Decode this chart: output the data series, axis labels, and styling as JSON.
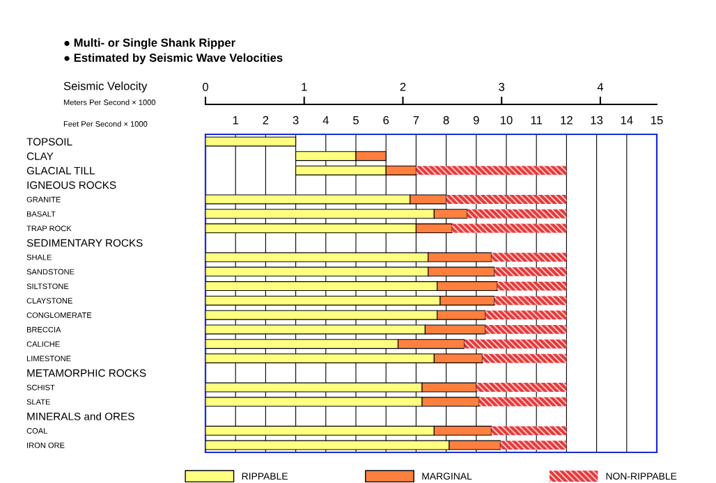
{
  "chart_data": {
    "type": "bar",
    "orientation": "horizontal",
    "title": "● Multi- or Single Shank Ripper\n● Estimated by Seismic Wave Velocities",
    "xlabel": "Feet Per Second × 1000",
    "x2label": "Meters Per Second × 1000",
    "annotations": [
      "Seismic Velocity"
    ],
    "categories": [
      "TOPSOIL",
      "CLAY",
      "GLACIAL TILL",
      "IGNEOUS ROCKS",
      "GRANITE",
      "BASALT",
      "TRAP ROCK",
      "SEDIMENTARY ROCKS",
      "SHALE",
      "SANDSTONE",
      "SILTSTONE",
      "CLAYSTONE",
      "CONGLOMERATE",
      "BRECCIA",
      "CALICHE",
      "LIMESTONE",
      "METAMORPHIC ROCKS",
      "SCHIST",
      "SLATE",
      "MINERALS and ORES",
      "COAL",
      "IRON ORE"
    ],
    "series": [
      {
        "name": "RIPPABLE",
        "color": "#ffff80",
        "base": [
          0,
          3,
          3,
          null,
          0,
          0,
          0,
          null,
          0,
          0,
          0,
          0,
          0,
          0,
          0,
          0,
          null,
          0,
          0,
          null,
          0,
          0
        ],
        "values": [
          3,
          2,
          3,
          null,
          6.8,
          7.6,
          7,
          null,
          7.4,
          7.4,
          7.7,
          7.8,
          7.7,
          7.3,
          6.4,
          7.6,
          null,
          7.2,
          7.2,
          null,
          7.6,
          8.1
        ]
      },
      {
        "name": "MARGINAL",
        "color": "#ff7f3f",
        "base": [
          null,
          5,
          6,
          null,
          6.8,
          7.6,
          7,
          null,
          7.4,
          7.4,
          7.7,
          7.8,
          7.7,
          7.3,
          6.4,
          7.6,
          null,
          7.2,
          7.2,
          null,
          7.6,
          8.1
        ],
        "values": [
          null,
          1,
          1,
          null,
          1.2,
          1.1,
          1.2,
          null,
          2.1,
          2.2,
          2,
          1.8,
          1.6,
          2,
          2.2,
          1.6,
          null,
          1.8,
          1.9,
          null,
          1.9,
          1.7
        ]
      },
      {
        "name": "NON-RIPPABLE",
        "color": "#e8393a",
        "base": [
          null,
          null,
          7,
          null,
          8,
          8.7,
          8.2,
          null,
          9.5,
          9.6,
          9.7,
          9.6,
          9.3,
          9.3,
          8.6,
          9.2,
          null,
          9,
          9.1,
          null,
          9.5,
          9.8
        ],
        "values": [
          null,
          null,
          5,
          null,
          4,
          3.3,
          3.8,
          null,
          2.5,
          2.4,
          2.3,
          2.4,
          2.7,
          2.7,
          3.4,
          2.8,
          null,
          3,
          2.9,
          null,
          2.5,
          2.2
        ]
      }
    ],
    "xlim": [
      0,
      15
    ],
    "xticks": [
      1,
      2,
      3,
      4,
      5,
      6,
      7,
      8,
      9,
      10,
      11,
      12,
      13,
      14,
      15
    ],
    "x2lim": [
      0,
      4.572
    ],
    "x2ticks": [
      0,
      1,
      2,
      3,
      4
    ],
    "grid": "x",
    "legend": "bottom"
  }
}
